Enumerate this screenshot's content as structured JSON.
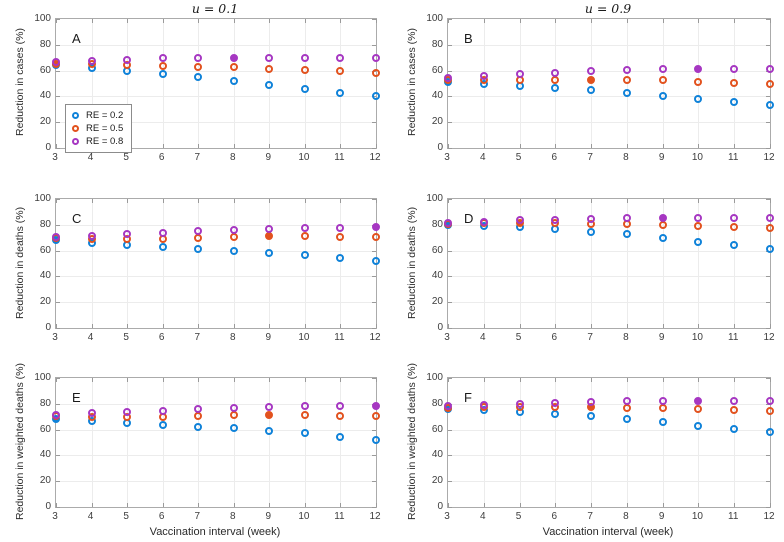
{
  "figure": {
    "column_titles": [
      "u = 0.1",
      "u = 0.9"
    ],
    "xlabel": "Vaccination interval (week)",
    "yticks": [
      0,
      20,
      40,
      60,
      80,
      100
    ],
    "colors": {
      "blue": "#0f82d9",
      "orange": "#e2521e",
      "purple": "#a637c2"
    },
    "legend": {
      "items": [
        {
          "label": "RE = 0.2",
          "color": "#0f82d9"
        },
        {
          "label": "RE = 0.5",
          "color": "#e2521e"
        },
        {
          "label": "RE = 0.8",
          "color": "#a637c2"
        }
      ]
    }
  },
  "chart_data": [
    {
      "type": "scatter",
      "panel_label": "A",
      "title": "u = 0.1",
      "ylabel": "Reduction in cases (%)",
      "ylim": [
        0,
        100
      ],
      "x": [
        3,
        4,
        5,
        6,
        7,
        8,
        9,
        10,
        11,
        12
      ],
      "grid": true,
      "show_legend": true,
      "show_xlabel": false,
      "series": [
        {
          "name": "RE = 0.2",
          "color": "#0f82d9",
          "filled_x": 3,
          "values": [
            64,
            62,
            60,
            57.5,
            55,
            52,
            48.5,
            45.5,
            42.5,
            40
          ]
        },
        {
          "name": "RE = 0.5",
          "color": "#e2521e",
          "filled_x": 3,
          "values": [
            65.5,
            65,
            64,
            63.5,
            63,
            62.5,
            61.5,
            60.5,
            59.5,
            58.5
          ]
        },
        {
          "name": "RE = 0.8",
          "color": "#a637c2",
          "filled_x": 8,
          "values": [
            66.5,
            67.5,
            68.5,
            69.5,
            70,
            70,
            70,
            70,
            69.5,
            69.5
          ]
        }
      ]
    },
    {
      "type": "scatter",
      "panel_label": "B",
      "title": "u = 0.9",
      "ylabel": "Reduction in cases (%)",
      "ylim": [
        0,
        100
      ],
      "x": [
        3,
        4,
        5,
        6,
        7,
        8,
        9,
        10,
        11,
        12
      ],
      "grid": true,
      "show_legend": false,
      "show_xlabel": false,
      "series": [
        {
          "name": "RE = 0.2",
          "color": "#0f82d9",
          "filled_x": 3,
          "values": [
            51,
            50,
            48,
            46.5,
            45,
            43,
            40.5,
            38,
            35.5,
            33.5
          ]
        },
        {
          "name": "RE = 0.5",
          "color": "#e2521e",
          "filled_x": 7,
          "values": [
            53,
            53,
            52.5,
            53,
            53,
            53,
            52.5,
            51.5,
            50.5,
            50
          ]
        },
        {
          "name": "RE = 0.8",
          "color": "#a637c2",
          "filled_x": 10,
          "values": [
            54,
            55.5,
            57,
            58.5,
            59.5,
            60.5,
            61,
            61,
            61,
            61
          ]
        }
      ]
    },
    {
      "type": "scatter",
      "panel_label": "C",
      "title": "",
      "ylabel": "Reduction in deaths (%)",
      "ylim": [
        0,
        100
      ],
      "x": [
        3,
        4,
        5,
        6,
        7,
        8,
        9,
        10,
        11,
        12
      ],
      "grid": true,
      "show_legend": false,
      "show_xlabel": false,
      "series": [
        {
          "name": "RE = 0.2",
          "color": "#0f82d9",
          "filled_x": 3,
          "values": [
            68,
            66,
            64,
            62.5,
            61,
            60,
            58.5,
            56.5,
            54,
            52
          ]
        },
        {
          "name": "RE = 0.5",
          "color": "#e2521e",
          "filled_x": 9,
          "values": [
            69.5,
            69,
            69,
            69,
            69.5,
            70.5,
            71,
            71,
            70.5,
            70.5
          ]
        },
        {
          "name": "RE = 0.8",
          "color": "#a637c2",
          "filled_x": 12,
          "values": [
            70.5,
            71.5,
            72.5,
            73.5,
            75,
            76,
            77,
            77.5,
            77.5,
            78
          ]
        }
      ]
    },
    {
      "type": "scatter",
      "panel_label": "D",
      "title": "",
      "ylabel": "Reduction in deaths (%)",
      "ylim": [
        0,
        100
      ],
      "x": [
        3,
        4,
        5,
        6,
        7,
        8,
        9,
        10,
        11,
        12
      ],
      "grid": true,
      "show_legend": false,
      "show_xlabel": false,
      "series": [
        {
          "name": "RE = 0.2",
          "color": "#0f82d9",
          "filled_x": 3,
          "values": [
            80,
            79,
            78,
            76.5,
            74.5,
            72.5,
            70,
            67,
            64,
            61
          ]
        },
        {
          "name": "RE = 0.5",
          "color": "#e2521e",
          "filled_x": 5,
          "values": [
            81,
            81.5,
            81.5,
            81.5,
            81,
            80.5,
            79.5,
            79,
            78,
            77.5
          ]
        },
        {
          "name": "RE = 0.8",
          "color": "#a637c2",
          "filled_x": 9,
          "values": [
            81.5,
            82.5,
            83.5,
            84,
            84.5,
            85,
            85,
            85,
            85,
            85
          ]
        }
      ]
    },
    {
      "type": "scatter",
      "panel_label": "E",
      "title": "",
      "ylabel": "Reduction in weighted deaths (%)",
      "ylim": [
        0,
        100
      ],
      "x": [
        3,
        4,
        5,
        6,
        7,
        8,
        9,
        10,
        11,
        12
      ],
      "grid": true,
      "show_legend": false,
      "show_xlabel": true,
      "series": [
        {
          "name": "RE = 0.2",
          "color": "#0f82d9",
          "filled_x": 3,
          "values": [
            68.5,
            67,
            65,
            63.5,
            62,
            61,
            59,
            57,
            54,
            52
          ]
        },
        {
          "name": "RE = 0.5",
          "color": "#e2521e",
          "filled_x": 9,
          "values": [
            70.5,
            70,
            70,
            70,
            70.5,
            71,
            71.5,
            71,
            70.5,
            70.5
          ]
        },
        {
          "name": "RE = 0.8",
          "color": "#a637c2",
          "filled_x": 12,
          "values": [
            71,
            72.5,
            73.5,
            74.5,
            76,
            77,
            77.5,
            78,
            78,
            78.5
          ]
        }
      ]
    },
    {
      "type": "scatter",
      "panel_label": "F",
      "title": "",
      "ylabel": "Reduction in weighted deaths (%)",
      "ylim": [
        0,
        100
      ],
      "x": [
        3,
        4,
        5,
        6,
        7,
        8,
        9,
        10,
        11,
        12
      ],
      "grid": true,
      "show_legend": false,
      "show_xlabel": true,
      "series": [
        {
          "name": "RE = 0.2",
          "color": "#0f82d9",
          "filled_x": 3,
          "values": [
            76,
            75,
            73.5,
            72,
            70.5,
            68.5,
            66,
            63,
            60.5,
            58
          ]
        },
        {
          "name": "RE = 0.5",
          "color": "#e2521e",
          "filled_x": 7,
          "values": [
            77,
            77.5,
            77.5,
            77.5,
            77.5,
            77,
            76.5,
            76,
            75,
            74.5
          ]
        },
        {
          "name": "RE = 0.8",
          "color": "#a637c2",
          "filled_x": 10,
          "values": [
            78,
            79,
            80,
            81,
            81.5,
            82,
            82.5,
            82.5,
            82.5,
            82.5
          ]
        }
      ]
    }
  ]
}
